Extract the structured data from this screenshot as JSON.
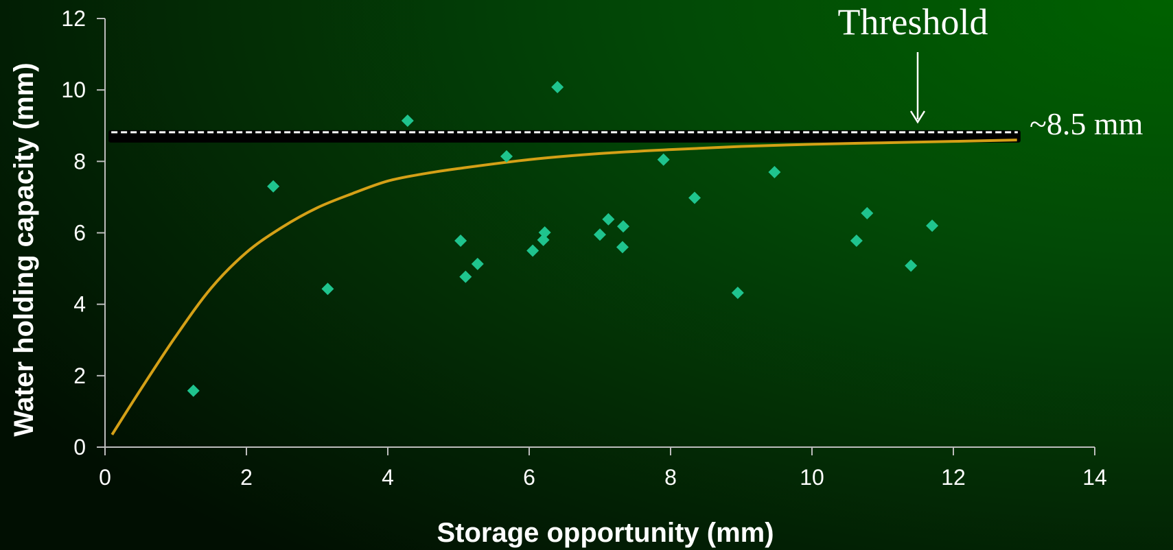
{
  "chart_data": {
    "type": "scatter",
    "title": "",
    "xlabel": "Storage opportunity (mm)",
    "ylabel": "Water holding capacity (mm)",
    "xlim": [
      0,
      14
    ],
    "ylim": [
      0,
      12
    ],
    "xticks": [
      0,
      2,
      4,
      6,
      8,
      10,
      12,
      14
    ],
    "yticks": [
      0,
      2,
      4,
      6,
      8,
      10,
      12
    ],
    "grid": false,
    "legend": "none",
    "points": [
      {
        "x": 1.25,
        "y": 1.58
      },
      {
        "x": 2.38,
        "y": 7.3
      },
      {
        "x": 3.15,
        "y": 4.43
      },
      {
        "x": 4.28,
        "y": 9.14
      },
      {
        "x": 5.03,
        "y": 5.78
      },
      {
        "x": 5.1,
        "y": 4.77
      },
      {
        "x": 5.27,
        "y": 5.13
      },
      {
        "x": 5.68,
        "y": 8.14
      },
      {
        "x": 6.05,
        "y": 5.5
      },
      {
        "x": 6.2,
        "y": 5.8
      },
      {
        "x": 6.22,
        "y": 6.01
      },
      {
        "x": 6.4,
        "y": 10.08
      },
      {
        "x": 7.0,
        "y": 5.95
      },
      {
        "x": 7.12,
        "y": 6.38
      },
      {
        "x": 7.32,
        "y": 5.6
      },
      {
        "x": 7.33,
        "y": 6.18
      },
      {
        "x": 7.9,
        "y": 8.05
      },
      {
        "x": 8.34,
        "y": 6.98
      },
      {
        "x": 8.95,
        "y": 4.32
      },
      {
        "x": 9.47,
        "y": 7.7
      },
      {
        "x": 10.63,
        "y": 5.78
      },
      {
        "x": 10.78,
        "y": 6.55
      },
      {
        "x": 11.4,
        "y": 5.08
      },
      {
        "x": 11.7,
        "y": 6.2
      }
    ],
    "fit_curve": {
      "x": [
        0.1,
        0.5,
        1.0,
        1.5,
        2.0,
        2.5,
        3.0,
        3.5,
        4.0,
        4.5,
        5.0,
        6.0,
        7.0,
        8.0,
        9.0,
        10.0,
        11.0,
        12.0,
        12.9
      ],
      "y": [
        0.35,
        1.6,
        3.1,
        4.45,
        5.45,
        6.15,
        6.7,
        7.1,
        7.45,
        7.65,
        7.8,
        8.05,
        8.22,
        8.33,
        8.42,
        8.48,
        8.52,
        8.56,
        8.6
      ],
      "color": "#d4a017"
    },
    "threshold": {
      "y": 8.7,
      "x_range": [
        0.05,
        12.95
      ],
      "label": "Threshold",
      "value_label": "~8.5 mm"
    },
    "colors": {
      "points": "#1fc48e",
      "axis": "#bdbdbd",
      "threshold_bar": "#000000",
      "threshold_dash": "#ffffff"
    }
  }
}
